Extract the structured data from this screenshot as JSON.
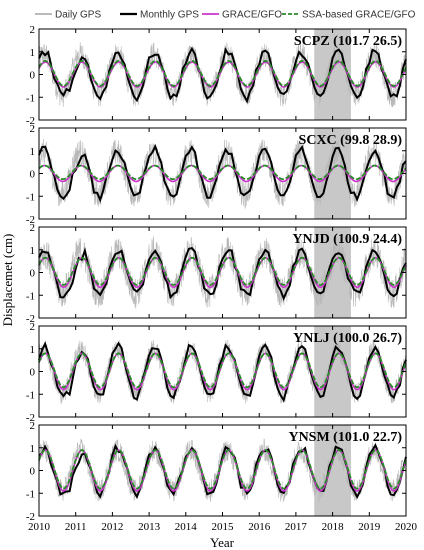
{
  "chart_data": {
    "type": "line",
    "xlabel": "Year",
    "ylabel": "Displacemet (cm)",
    "xlim": [
      2010,
      2020
    ],
    "xticks": [
      2010,
      2011,
      2012,
      2013,
      2014,
      2015,
      2016,
      2017,
      2018,
      2019,
      2020
    ],
    "ylim": [
      -2,
      2
    ],
    "yticks": [
      -2,
      -1,
      0,
      1,
      2
    ],
    "grid": false,
    "legend_position": "top",
    "highlight_band": [
      2017.5,
      2018.5
    ],
    "legend": [
      {
        "name": "Daily GPS",
        "color": "#b0b0b0",
        "style": "solid"
      },
      {
        "name": "Monthly GPS",
        "color": "#000000",
        "style": "solid"
      },
      {
        "name": "GRACE/GFO",
        "color": "#cc33cc",
        "style": "solid"
      },
      {
        "name": "SSA-based GRACE/GFO",
        "color": "#2a8a2a",
        "style": "dashed"
      }
    ],
    "panels": [
      {
        "station": "SCPZ (101.7  26.5)",
        "amp_monthly": 1.0,
        "amp_grace": 0.55,
        "amp_ssa": 0.55,
        "daily_spread": 0.55,
        "phase": 0.0,
        "offset": 0.0
      },
      {
        "station": "SCXC (99.8  28.9)",
        "amp_monthly": 1.05,
        "amp_grace": 0.35,
        "amp_ssa": 0.3,
        "daily_spread": 0.6,
        "phase": 0.02,
        "offset": 0.0
      },
      {
        "station": "YNJD (100.9  24.4)",
        "amp_monthly": 1.0,
        "amp_grace": 0.65,
        "amp_ssa": 0.6,
        "daily_spread": 0.7,
        "phase": 0.0,
        "offset": 0.0
      },
      {
        "station": "YNLJ (100.0  26.7)",
        "amp_monthly": 1.1,
        "amp_grace": 0.8,
        "amp_ssa": 0.75,
        "daily_spread": 0.45,
        "phase": 0.0,
        "offset": 0.0
      },
      {
        "station": "YNSM (101.0  22.7)",
        "amp_monthly": 1.0,
        "amp_grace": 0.9,
        "amp_ssa": 0.85,
        "daily_spread": 0.5,
        "phase": 0.0,
        "offset": 0.0
      }
    ]
  }
}
